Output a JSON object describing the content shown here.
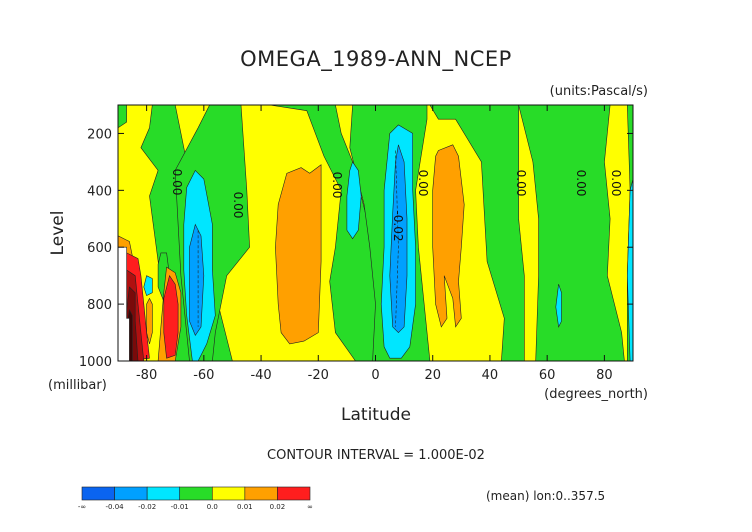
{
  "chart_data": {
    "type": "heatmap",
    "title": "OMEGA_1989-ANN_NCEP",
    "units": "(units:Pascal/s)",
    "xlabel": "Latitude",
    "x_units": "(degrees_north)",
    "ylabel": "Level",
    "y_units": "(millibar)",
    "xlim": [
      -90,
      90
    ],
    "ylim": [
      1000,
      100
    ],
    "x_ticks": [
      "-80",
      "-60",
      "-40",
      "-20",
      "0",
      "20",
      "40",
      "60",
      "80"
    ],
    "y_ticks": [
      "200",
      "400",
      "600",
      "800",
      "1000"
    ],
    "contour_interval_text": "CONTOUR INTERVAL = 1.000E-02",
    "footer": "(mean) lon:0..357.5",
    "contour_labels": [
      "0.00",
      "0.00",
      "0.00",
      "0.00",
      "0.00",
      "0.00",
      "0.00",
      "-0.02"
    ],
    "colorbar": {
      "colors": [
        "#0a64f0",
        "#00a0ff",
        "#00e6ff",
        "#28dc28",
        "#ffff00",
        "#ffa000",
        "#ff1e1e"
      ],
      "labels": [
        "-∞",
        "-0.04",
        "-0.02",
        "-0.01",
        "0.0",
        "0.01",
        "0.02",
        "∞"
      ]
    }
  }
}
